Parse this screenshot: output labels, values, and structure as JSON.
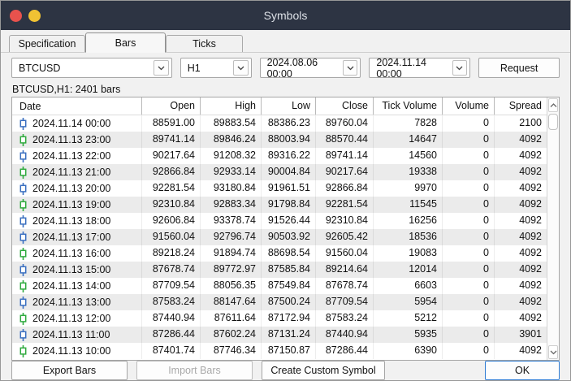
{
  "window": {
    "title": "Symbols"
  },
  "titlebar": {
    "close_color": "#e8524d",
    "minimize_color": "#f0c233",
    "bar_color": "#2d3443"
  },
  "tabs": [
    {
      "label": "Specification",
      "active": false
    },
    {
      "label": "Bars",
      "active": true
    },
    {
      "label": "Ticks",
      "active": false
    }
  ],
  "controls": {
    "symbol": "BTCUSD",
    "timeframe": "H1",
    "from": "2024.08.06 00:00",
    "to": "2024.11.14 00:00",
    "request_label": "Request"
  },
  "status": "BTCUSD,H1: 2401 bars",
  "table": {
    "columns": [
      "Date",
      "Open",
      "High",
      "Low",
      "Close",
      "Tick Volume",
      "Volume",
      "Spread"
    ],
    "icon_colors": {
      "blue": "#3a6fc0",
      "green": "#2faa3e"
    },
    "rows": [
      {
        "icon": "blue",
        "date": "2024.11.14 00:00",
        "open": "88591.00",
        "high": "89883.54",
        "low": "88386.23",
        "close": "89760.04",
        "tick_volume": "7828",
        "volume": "0",
        "spread": "2100"
      },
      {
        "icon": "green",
        "date": "2024.11.13 23:00",
        "open": "89741.14",
        "high": "89846.24",
        "low": "88003.94",
        "close": "88570.44",
        "tick_volume": "14647",
        "volume": "0",
        "spread": "4092"
      },
      {
        "icon": "blue",
        "date": "2024.11.13 22:00",
        "open": "90217.64",
        "high": "91208.32",
        "low": "89316.22",
        "close": "89741.14",
        "tick_volume": "14560",
        "volume": "0",
        "spread": "4092"
      },
      {
        "icon": "green",
        "date": "2024.11.13 21:00",
        "open": "92866.84",
        "high": "92933.14",
        "low": "90004.84",
        "close": "90217.64",
        "tick_volume": "19338",
        "volume": "0",
        "spread": "4092"
      },
      {
        "icon": "blue",
        "date": "2024.11.13 20:00",
        "open": "92281.54",
        "high": "93180.84",
        "low": "91961.51",
        "close": "92866.84",
        "tick_volume": "9970",
        "volume": "0",
        "spread": "4092"
      },
      {
        "icon": "green",
        "date": "2024.11.13 19:00",
        "open": "92310.84",
        "high": "92883.34",
        "low": "91798.84",
        "close": "92281.54",
        "tick_volume": "11545",
        "volume": "0",
        "spread": "4092"
      },
      {
        "icon": "blue",
        "date": "2024.11.13 18:00",
        "open": "92606.84",
        "high": "93378.74",
        "low": "91526.44",
        "close": "92310.84",
        "tick_volume": "16256",
        "volume": "0",
        "spread": "4092"
      },
      {
        "icon": "blue",
        "date": "2024.11.13 17:00",
        "open": "91560.04",
        "high": "92796.74",
        "low": "90503.92",
        "close": "92605.42",
        "tick_volume": "18536",
        "volume": "0",
        "spread": "4092"
      },
      {
        "icon": "green",
        "date": "2024.11.13 16:00",
        "open": "89218.24",
        "high": "91894.74",
        "low": "88698.54",
        "close": "91560.04",
        "tick_volume": "19083",
        "volume": "0",
        "spread": "4092"
      },
      {
        "icon": "blue",
        "date": "2024.11.13 15:00",
        "open": "87678.74",
        "high": "89772.97",
        "low": "87585.84",
        "close": "89214.64",
        "tick_volume": "12014",
        "volume": "0",
        "spread": "4092"
      },
      {
        "icon": "green",
        "date": "2024.11.13 14:00",
        "open": "87709.54",
        "high": "88056.35",
        "low": "87549.84",
        "close": "87678.74",
        "tick_volume": "6603",
        "volume": "0",
        "spread": "4092"
      },
      {
        "icon": "blue",
        "date": "2024.11.13 13:00",
        "open": "87583.24",
        "high": "88147.64",
        "low": "87500.24",
        "close": "87709.54",
        "tick_volume": "5954",
        "volume": "0",
        "spread": "4092"
      },
      {
        "icon": "green",
        "date": "2024.11.13 12:00",
        "open": "87440.94",
        "high": "87611.64",
        "low": "87172.94",
        "close": "87583.24",
        "tick_volume": "5212",
        "volume": "0",
        "spread": "4092"
      },
      {
        "icon": "blue",
        "date": "2024.11.13 11:00",
        "open": "87286.44",
        "high": "87602.24",
        "low": "87131.24",
        "close": "87440.94",
        "tick_volume": "5935",
        "volume": "0",
        "spread": "3901"
      },
      {
        "icon": "green",
        "date": "2024.11.13 10:00",
        "open": "87401.74",
        "high": "87746.34",
        "low": "87150.87",
        "close": "87286.44",
        "tick_volume": "6390",
        "volume": "0",
        "spread": "4092"
      }
    ]
  },
  "footer": {
    "export_label": "Export Bars",
    "import_label": "Import Bars",
    "import_enabled": false,
    "create_label": "Create Custom Symbol",
    "ok_label": "OK"
  }
}
